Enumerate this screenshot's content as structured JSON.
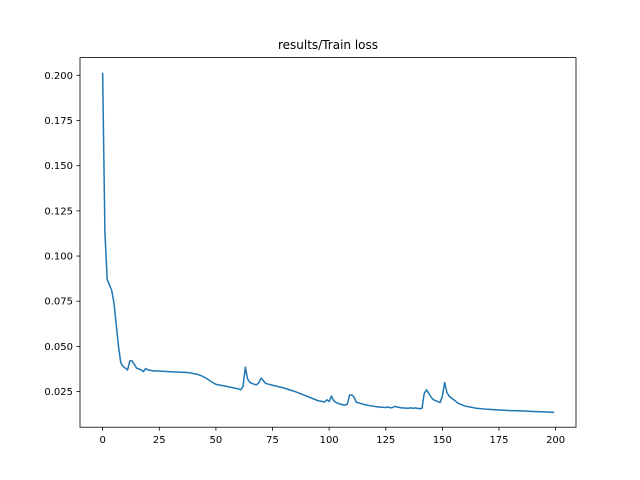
{
  "chart_data": {
    "type": "line",
    "title": "results/Train loss",
    "xlabel": "",
    "ylabel": "",
    "xlim": [
      -10,
      209
    ],
    "ylim": [
      0.0053,
      0.2098
    ],
    "grid": false,
    "legend": "none",
    "line_color": "#1f77b4",
    "xticks": [
      0,
      25,
      50,
      75,
      100,
      125,
      150,
      175,
      200
    ],
    "yticks": [
      0.025,
      0.05,
      0.075,
      0.1,
      0.125,
      0.15,
      0.175,
      0.2
    ],
    "ytick_labels": [
      "0.025",
      "0.050",
      "0.075",
      "0.100",
      "0.125",
      "0.150",
      "0.175",
      "0.200"
    ],
    "series": [
      {
        "x": [
          0,
          1,
          2,
          3,
          4,
          5,
          6,
          7,
          8,
          9,
          10,
          11,
          12,
          13,
          14,
          15,
          16,
          17,
          18,
          19,
          20,
          21,
          22,
          25,
          30,
          35,
          38,
          40,
          42,
          44,
          46,
          48,
          50,
          55,
          58,
          60,
          61,
          62,
          63,
          64,
          65,
          66,
          67,
          68,
          69,
          70,
          71,
          72,
          75,
          80,
          85,
          90,
          95,
          97,
          98,
          99,
          100,
          101,
          102,
          103,
          105,
          107,
          108,
          109,
          110,
          111,
          112,
          113,
          115,
          118,
          120,
          122,
          124,
          125,
          126,
          127,
          128,
          129,
          130,
          132,
          135,
          136,
          137,
          138,
          140,
          141,
          142,
          143,
          144,
          145,
          146,
          147,
          148,
          149,
          150,
          151,
          152,
          153,
          155,
          157,
          160,
          165,
          170,
          175,
          180,
          185,
          190,
          195,
          199
        ],
        "y": [
          0.201,
          0.113,
          0.087,
          0.084,
          0.081,
          0.074,
          0.062,
          0.05,
          0.041,
          0.039,
          0.038,
          0.037,
          0.042,
          0.042,
          0.04,
          0.038,
          0.0375,
          0.037,
          0.036,
          0.0378,
          0.037,
          0.0368,
          0.0365,
          0.0363,
          0.036,
          0.0357,
          0.0355,
          0.035,
          0.0345,
          0.0335,
          0.0322,
          0.0305,
          0.029,
          0.0278,
          0.027,
          0.0265,
          0.026,
          0.028,
          0.0385,
          0.032,
          0.03,
          0.0295,
          0.029,
          0.0288,
          0.03,
          0.0325,
          0.031,
          0.0295,
          0.0285,
          0.027,
          0.025,
          0.0225,
          0.02,
          0.0195,
          0.0192,
          0.0205,
          0.0195,
          0.0225,
          0.02,
          0.019,
          0.018,
          0.0175,
          0.018,
          0.023,
          0.0232,
          0.022,
          0.019,
          0.0188,
          0.018,
          0.0172,
          0.0168,
          0.0165,
          0.0163,
          0.0162,
          0.0165,
          0.016,
          0.0162,
          0.0168,
          0.0165,
          0.016,
          0.0158,
          0.016,
          0.0158,
          0.016,
          0.0155,
          0.0158,
          0.024,
          0.026,
          0.024,
          0.022,
          0.0205,
          0.02,
          0.0195,
          0.019,
          0.0225,
          0.03,
          0.0245,
          0.0225,
          0.0205,
          0.0185,
          0.017,
          0.0158,
          0.0152,
          0.0148,
          0.0145,
          0.0143,
          0.014,
          0.0138,
          0.0135
        ]
      }
    ]
  }
}
